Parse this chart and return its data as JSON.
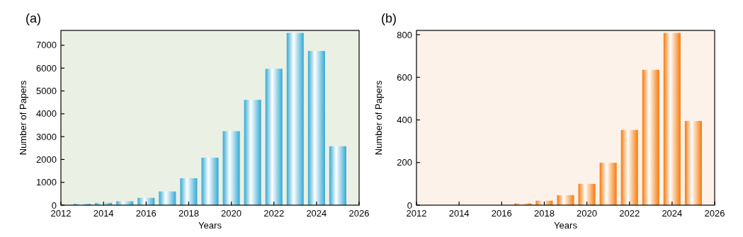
{
  "chart_data": [
    {
      "type": "bar",
      "title": "(a)",
      "xlabel": "Years",
      "ylabel": "Number of Papers",
      "x": [
        2013,
        2014,
        2015,
        2016,
        2017,
        2018,
        2019,
        2020,
        2021,
        2022,
        2023,
        2024,
        2025
      ],
      "series": [
        {
          "color": "#35a9d4",
          "values": [
            60,
            100,
            170,
            320,
            600,
            1180,
            2080,
            3240,
            4610,
            5970,
            7540,
            6750,
            2580
          ]
        }
      ],
      "xlim": [
        2012,
        2026
      ],
      "xticks": [
        2012,
        2014,
        2016,
        2018,
        2020,
        2022,
        2024,
        2026
      ],
      "ylim": [
        0,
        7650
      ],
      "yticks": [
        0,
        1000,
        2000,
        3000,
        4000,
        5000,
        6000,
        7000
      ],
      "grid": false
    },
    {
      "type": "bar",
      "title": "(b)",
      "xlabel": "Years",
      "ylabel": "Number of Papers",
      "x": [
        2017,
        2018,
        2019,
        2020,
        2021,
        2022,
        2023,
        2024,
        2025
      ],
      "series": [
        {
          "color": "#f57a0a",
          "values": [
            8,
            21,
            47,
            100,
            199,
            353,
            635,
            808,
            395
          ]
        }
      ],
      "xlim": [
        2012,
        2026
      ],
      "xticks": [
        2012,
        2014,
        2016,
        2018,
        2020,
        2022,
        2024,
        2026
      ],
      "ylim": [
        0,
        820
      ],
      "yticks": [
        0,
        200,
        400,
        600,
        800
      ],
      "grid": false
    }
  ]
}
